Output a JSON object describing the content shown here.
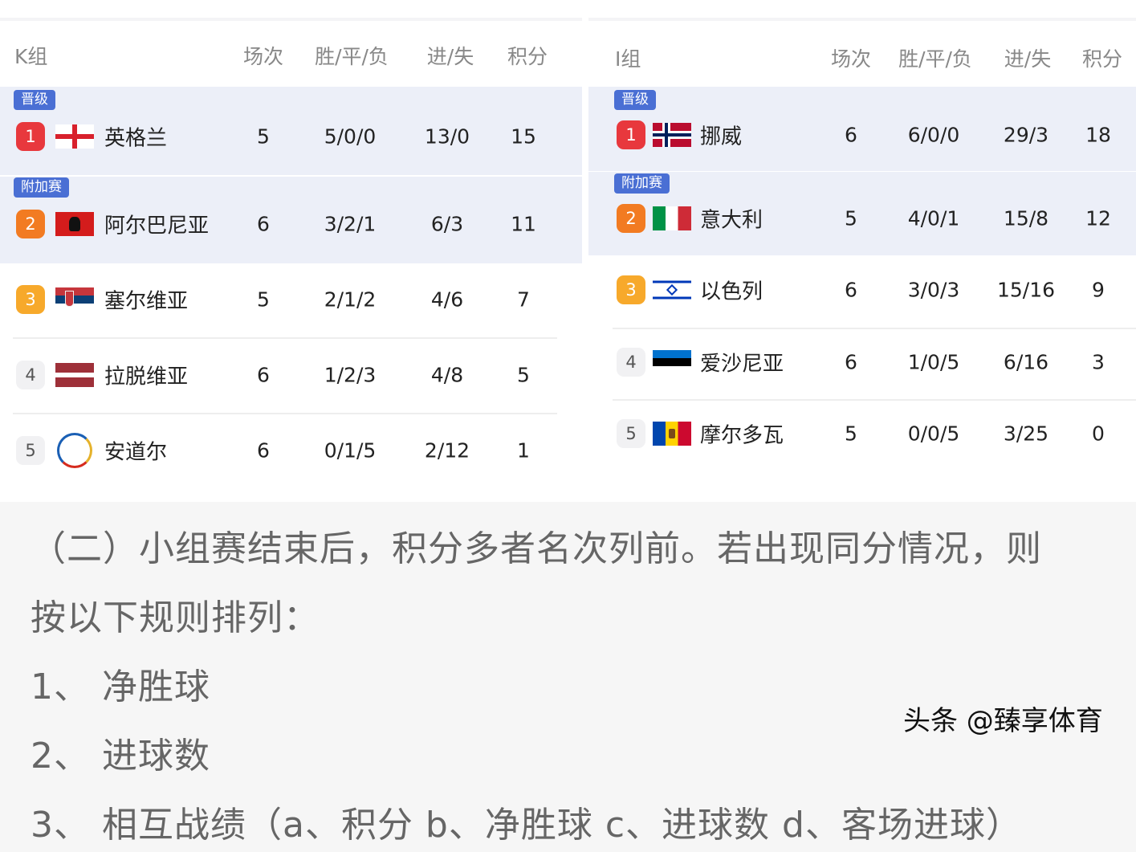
{
  "groups": [
    {
      "id": "left",
      "title": "K组",
      "headers": [
        "场次",
        "胜/平/负",
        "进/失",
        "积分"
      ],
      "rows": [
        {
          "badge": "晋级",
          "rank": "1",
          "rank_color": "#e8383d",
          "flag": "england",
          "name": "英格兰",
          "played": "5",
          "wdl": "5/0/0",
          "goals": "13/0",
          "points": "15"
        },
        {
          "badge": "附加赛",
          "rank": "2",
          "rank_color": "#f27b22",
          "flag": "albania",
          "name": "阿尔巴尼亚",
          "played": "6",
          "wdl": "3/2/1",
          "goals": "6/3",
          "points": "11"
        },
        {
          "rank": "3",
          "rank_color": "#f7a92b",
          "flag": "serbia",
          "name": "塞尔维亚",
          "played": "5",
          "wdl": "2/1/2",
          "goals": "4/6",
          "points": "7"
        },
        {
          "rank": "4",
          "flag": "latvia",
          "name": "拉脱维亚",
          "played": "6",
          "wdl": "1/2/3",
          "goals": "4/8",
          "points": "5"
        },
        {
          "rank": "5",
          "flag": "andorra",
          "name": "安道尔",
          "played": "6",
          "wdl": "0/1/5",
          "goals": "2/12",
          "points": "1"
        }
      ]
    },
    {
      "id": "right",
      "title": "I组",
      "headers": [
        "场次",
        "胜/平/负",
        "进/失",
        "积分"
      ],
      "rows": [
        {
          "badge": "晋级",
          "rank": "1",
          "rank_color": "#e8383d",
          "flag": "norway",
          "name": "挪威",
          "played": "6",
          "wdl": "6/0/0",
          "goals": "29/3",
          "points": "18"
        },
        {
          "badge": "附加赛",
          "rank": "2",
          "rank_color": "#f27b22",
          "flag": "italy",
          "name": "意大利",
          "played": "5",
          "wdl": "4/0/1",
          "goals": "15/8",
          "points": "12"
        },
        {
          "rank": "3",
          "rank_color": "#f7a92b",
          "flag": "israel",
          "name": "以色列",
          "played": "6",
          "wdl": "3/0/3",
          "goals": "15/16",
          "points": "9"
        },
        {
          "rank": "4",
          "flag": "estonia",
          "name": "爱沙尼亚",
          "played": "6",
          "wdl": "1/0/5",
          "goals": "6/16",
          "points": "3"
        },
        {
          "rank": "5",
          "flag": "moldova",
          "name": "摩尔多瓦",
          "played": "5",
          "wdl": "0/0/5",
          "goals": "3/25",
          "points": "0"
        }
      ]
    }
  ],
  "rules": {
    "line1": "（二）小组赛结束后，积分多者名次列前。若出现同分情况，则",
    "line2": "按以下规则排列：",
    "line3": "1、 净胜球",
    "line4": "2、 进球数",
    "line5": "3、 相互战绩（a、积分 b、净胜球 c、进球数 d、客场进球）"
  },
  "watermark": "头条 @臻享体育"
}
